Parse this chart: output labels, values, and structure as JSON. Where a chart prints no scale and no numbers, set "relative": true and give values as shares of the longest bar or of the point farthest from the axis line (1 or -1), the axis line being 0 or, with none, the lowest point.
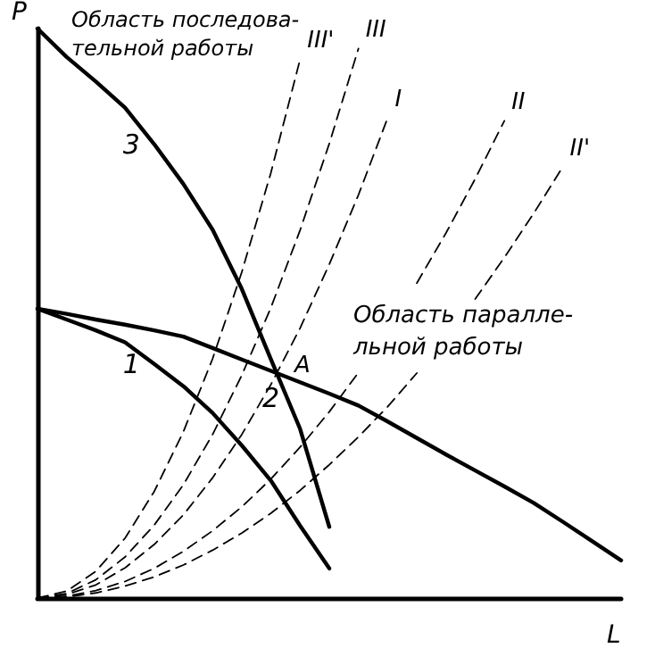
{
  "chart_data": {
    "type": "line",
    "relative": true,
    "xlabel": "L",
    "ylabel": "P",
    "categories": [
      null,
      null,
      null,
      null,
      null,
      null,
      null,
      null,
      null,
      null,
      null,
      null,
      null,
      null,
      null,
      null,
      null,
      null,
      null,
      null,
      null
    ],
    "annotations": [
      "Область последова-\nтельной работы",
      "Область паралле-\nльной работы",
      "A"
    ],
    "series": [
      {
        "name": "3",
        "color": "#000000",
        "line_style": "solid",
        "values": [
          1.0,
          0.95,
          0.907,
          0.861,
          0.797,
          0.727,
          0.647,
          0.543,
          0.419,
          0.297,
          0.125,
          null,
          null,
          null,
          null,
          null,
          null,
          null,
          null,
          null,
          null
        ]
      },
      {
        "name": "2",
        "color": "#000000",
        "line_style": "solid",
        "values": [
          0.508,
          0.499,
          0.489,
          0.48,
          0.47,
          0.459,
          0.439,
          0.419,
          0.399,
          0.379,
          0.359,
          0.338,
          0.31,
          0.281,
          0.252,
          0.224,
          0.196,
          0.167,
          0.134,
          0.1,
          0.066
        ]
      },
      {
        "name": "1",
        "color": "#000000",
        "line_style": "solid",
        "values": [
          0.508,
          0.489,
          0.47,
          0.449,
          0.411,
          0.372,
          0.325,
          0.268,
          0.206,
          0.127,
          0.052,
          null,
          null,
          null,
          null,
          null,
          null,
          null,
          null,
          null,
          null
        ]
      },
      {
        "name": "III'",
        "color": "#000000",
        "line_style": "dashed",
        "values": [
          0,
          0.012,
          0.047,
          0.105,
          0.187,
          0.292,
          0.42,
          0.572,
          0.747,
          0.946,
          null,
          null,
          null,
          null,
          null,
          null,
          null,
          null,
          null,
          null,
          null
        ]
      },
      {
        "name": "III",
        "color": "#000000",
        "line_style": "dashed",
        "values": [
          0,
          0.008,
          0.032,
          0.072,
          0.128,
          0.199,
          0.287,
          0.391,
          0.51,
          0.646,
          0.798,
          0.965,
          null,
          null,
          null,
          null,
          null,
          null,
          null,
          null,
          null
        ]
      },
      {
        "name": "I",
        "color": "#000000",
        "line_style": "dashed",
        "values": [
          0,
          0.006,
          0.023,
          0.053,
          0.094,
          0.146,
          0.211,
          0.287,
          0.375,
          0.474,
          0.586,
          0.708,
          0.843,
          null,
          null,
          null,
          null,
          null,
          null,
          null,
          null
        ]
      },
      {
        "name": "II",
        "color": "#000000",
        "line_style": "dashed",
        "values": [
          0,
          0.003,
          0.013,
          0.029,
          0.052,
          0.082,
          0.118,
          0.16,
          0.209,
          0.265,
          0.327,
          0.396,
          null,
          0.553,
          0.641,
          0.736,
          0.838,
          null,
          null,
          null,
          null
        ]
      },
      {
        "name": "II'",
        "color": "#000000",
        "line_style": "dashed",
        "values": [
          0,
          0.002,
          0.009,
          0.021,
          0.037,
          0.058,
          0.084,
          0.114,
          0.149,
          0.189,
          0.234,
          0.283,
          0.336,
          0.395,
          null,
          0.525,
          0.598,
          0.675,
          0.757,
          null,
          null
        ]
      }
    ]
  }
}
